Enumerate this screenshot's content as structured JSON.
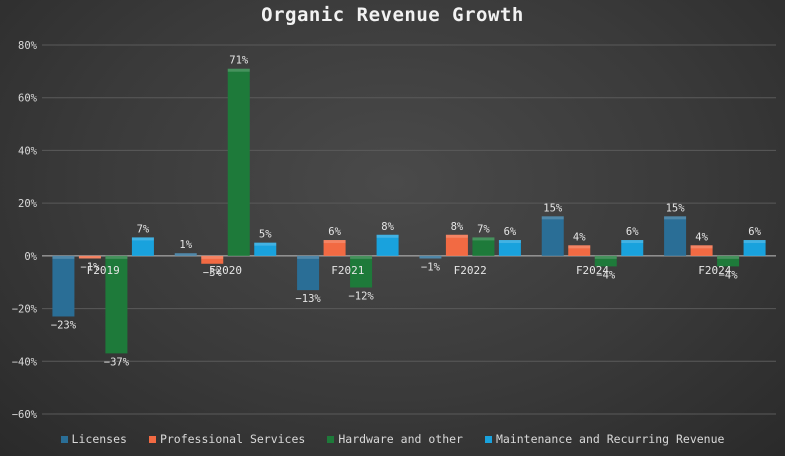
{
  "colors": {
    "Licenses": "#2a6e96",
    "Professional Services": "#f26a43",
    "Hardware and other": "#1e7a3a",
    "Maintenance and Recurring Revenue": "#19a2dd"
  },
  "chart_data": {
    "type": "bar",
    "title": "Organic Revenue Growth",
    "xlabel": "",
    "ylabel": "",
    "ylim": [
      -60,
      80
    ],
    "yticks": [
      80,
      60,
      40,
      20,
      0,
      -20,
      -40,
      -60
    ],
    "ytick_labels": [
      "80%",
      "60%",
      "40%",
      "20%",
      "0%",
      "−20%",
      "−40%",
      "−60%"
    ],
    "grid": true,
    "legend_position": "bottom",
    "categories": [
      "F2019",
      "F2020",
      "F2021",
      "F2022",
      "F2024",
      "F2024"
    ],
    "series": [
      {
        "name": "Licenses",
        "values": [
          -23,
          1,
          -13,
          -1,
          15,
          15
        ],
        "labels": [
          "−23%",
          "1%",
          "−13%",
          "−1%",
          "15%",
          "15%"
        ]
      },
      {
        "name": "Professional Services",
        "values": [
          -1,
          -3,
          6,
          8,
          4,
          4
        ],
        "labels": [
          "−1%",
          "−3%",
          "6%",
          "8%",
          "4%",
          "4%"
        ]
      },
      {
        "name": "Hardware and other",
        "values": [
          -37,
          71,
          -12,
          7,
          -4,
          -4
        ],
        "labels": [
          "−37%",
          "71%",
          "−12%",
          "7%",
          "−4%",
          "−4%"
        ]
      },
      {
        "name": "Maintenance and Recurring Revenue",
        "values": [
          7,
          5,
          8,
          6,
          6,
          6
        ],
        "labels": [
          "7%",
          "5%",
          "8%",
          "6%",
          "6%",
          "6%"
        ]
      }
    ]
  }
}
